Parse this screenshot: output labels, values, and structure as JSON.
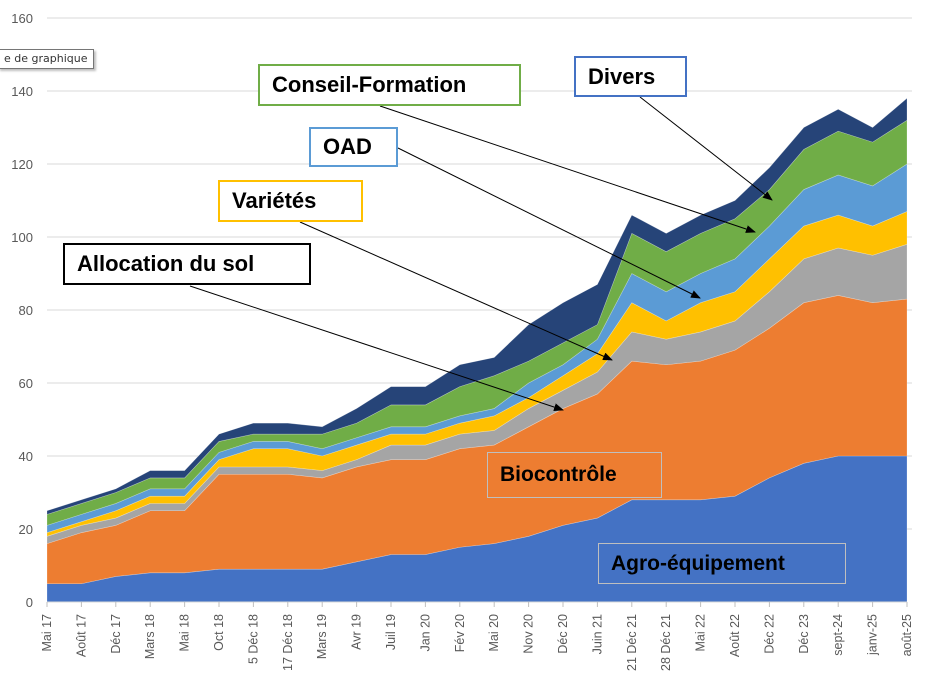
{
  "tooltip": {
    "text": "e de graphique"
  },
  "annotations": {
    "conseil": "Conseil-Formation",
    "divers": "Divers",
    "oad": "OAD",
    "varietes": "Variétés",
    "allocation": "Allocation du sol",
    "biocontrole": "Biocontrôle",
    "agro": "Agro-équipement"
  },
  "chart_data": {
    "type": "area",
    "stacked": true,
    "title": "",
    "xlabel": "",
    "ylabel": "",
    "ylim": [
      0,
      160
    ],
    "yticks": [
      0,
      20,
      40,
      60,
      80,
      100,
      120,
      140,
      160
    ],
    "grid": true,
    "legend": "none (labels drawn as annotations)",
    "categories": [
      "Mai 17",
      "Août 17",
      "Déc 17",
      "Mars 18",
      "Mai 18",
      "Oct 18",
      "5 Déc 18",
      "17 Déc 18",
      "Mars 19",
      "Avr 19",
      "Juil 19",
      "Jan 20",
      "Fév 20",
      "Mai 20",
      "Nov 20",
      "Déc 20",
      "Juin 21",
      "21 Déc 21",
      "28 Déc 21",
      "Mai 22",
      "Août 22",
      "Déc 22",
      "Déc 23",
      "sept-24",
      "janv-25",
      "août-25"
    ],
    "series": [
      {
        "name": "Agro-équipement",
        "color": "#4472c4",
        "values": [
          5,
          5,
          7,
          8,
          8,
          9,
          9,
          9,
          9,
          11,
          13,
          13,
          15,
          16,
          18,
          21,
          23,
          28,
          28,
          28,
          29,
          34,
          38,
          40,
          40,
          40
        ]
      },
      {
        "name": "Biocontrôle",
        "color": "#ed7d31",
        "values": [
          11,
          14,
          14,
          17,
          17,
          26,
          26,
          26,
          25,
          26,
          26,
          26,
          27,
          27,
          30,
          32,
          34,
          38,
          37,
          38,
          40,
          41,
          44,
          44,
          42,
          43
        ]
      },
      {
        "name": "Allocation du sol",
        "color": "#a5a5a5",
        "values": [
          2,
          2,
          2,
          2,
          2,
          2,
          2,
          2,
          2,
          2,
          4,
          4,
          4,
          4,
          5,
          5,
          6,
          8,
          7,
          8,
          8,
          10,
          12,
          13,
          13,
          15
        ]
      },
      {
        "name": "Variétés",
        "color": "#ffc000",
        "values": [
          1,
          1,
          2,
          2,
          2,
          2,
          5,
          5,
          4,
          4,
          3,
          3,
          3,
          4,
          3,
          4,
          5,
          8,
          5,
          8,
          8,
          9,
          9,
          9,
          8,
          9
        ]
      },
      {
        "name": "OAD",
        "color": "#5b9bd5",
        "values": [
          2,
          2,
          2,
          2,
          2,
          2,
          2,
          2,
          2,
          2,
          2,
          2,
          2,
          2,
          4,
          3,
          4,
          8,
          8,
          8,
          9,
          9,
          10,
          11,
          11,
          13
        ]
      },
      {
        "name": "Conseil-Formation",
        "color": "#70ad47",
        "values": [
          3,
          3,
          3,
          3,
          3,
          3,
          2,
          2,
          4,
          4,
          6,
          6,
          8,
          9,
          6,
          6,
          4,
          11,
          11,
          11,
          11,
          10,
          11,
          12,
          12,
          12
        ]
      },
      {
        "name": "Divers",
        "color": "#264478",
        "values": [
          1,
          1,
          1,
          2,
          2,
          2,
          3,
          3,
          2,
          4,
          5,
          5,
          6,
          5,
          10,
          11,
          11,
          5,
          5,
          5,
          5,
          6,
          6,
          6,
          4,
          6
        ]
      }
    ]
  }
}
